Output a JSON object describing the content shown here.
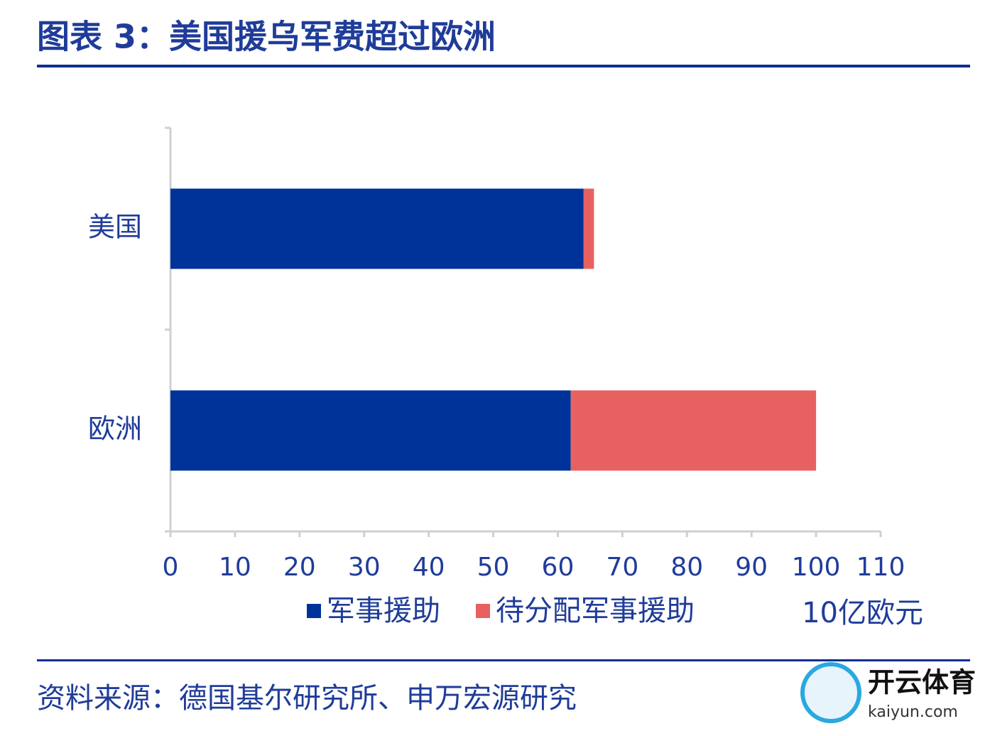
{
  "chart_data": {
    "type": "stacked-barh",
    "title": "图表 3：美国援乌军费超过欧洲",
    "categories": [
      "美国",
      "欧洲"
    ],
    "series": [
      {
        "name": "军事援助",
        "color": "#003399",
        "values": [
          64,
          62
        ]
      },
      {
        "name": "待分配军事援助",
        "color": "#e86161",
        "values": [
          1.6,
          38
        ]
      }
    ],
    "xlim": [
      0,
      110
    ],
    "xticks": [
      0,
      10,
      20,
      30,
      40,
      50,
      60,
      70,
      80,
      90,
      100,
      110
    ],
    "unit_label": "10亿欧元",
    "source": "资料来源：德国基尔研究所、申万宏源研究",
    "watermark": {
      "title": "开云体育",
      "url": "kaiyun.com"
    }
  }
}
